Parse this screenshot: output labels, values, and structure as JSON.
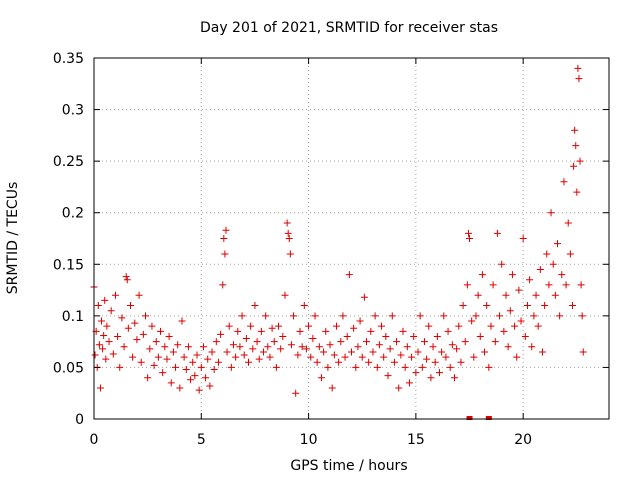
{
  "chart_data": {
    "type": "scatter",
    "title": "Day 201 of 2021, SRMTID for receiver stas",
    "xlabel": "GPS time / hours",
    "ylabel": "SRMTID / TECUs",
    "xlim": [
      0,
      24
    ],
    "ylim": [
      0,
      0.35
    ],
    "x_ticks": [
      0,
      5,
      10,
      15,
      20
    ],
    "x_tick_labels": [
      "0",
      "5",
      "10",
      "15",
      "20"
    ],
    "y_ticks": [
      0,
      0.05,
      0.1,
      0.15,
      0.2,
      0.25,
      0.3,
      0.35
    ],
    "y_tick_labels": [
      "0",
      "0.05",
      "0.1",
      "0.15",
      "0.2",
      "0.25",
      "0.3",
      "0.35"
    ],
    "grid": true,
    "marker": "+",
    "color": "#dd0000",
    "series": [
      {
        "name": "SRMTID",
        "points": [
          [
            0.0,
            0.128
          ],
          [
            0.05,
            0.062
          ],
          [
            0.1,
            0.085
          ],
          [
            0.15,
            0.05
          ],
          [
            0.2,
            0.11
          ],
          [
            0.25,
            0.072
          ],
          [
            0.3,
            0.03
          ],
          [
            0.35,
            0.095
          ],
          [
            0.4,
            0.068
          ],
          [
            0.45,
            0.081
          ],
          [
            0.5,
            0.115
          ],
          [
            0.55,
            0.058
          ],
          [
            0.6,
            0.09
          ],
          [
            0.7,
            0.075
          ],
          [
            0.8,
            0.105
          ],
          [
            0.9,
            0.063
          ],
          [
            1.0,
            0.12
          ],
          [
            1.1,
            0.08
          ],
          [
            1.2,
            0.05
          ],
          [
            1.3,
            0.098
          ],
          [
            1.4,
            0.07
          ],
          [
            1.5,
            0.138
          ],
          [
            1.55,
            0.135
          ],
          [
            1.6,
            0.088
          ],
          [
            1.7,
            0.11
          ],
          [
            1.8,
            0.06
          ],
          [
            1.9,
            0.093
          ],
          [
            2.0,
            0.077
          ],
          [
            2.1,
            0.12
          ],
          [
            2.2,
            0.055
          ],
          [
            2.3,
            0.082
          ],
          [
            2.4,
            0.1
          ],
          [
            2.5,
            0.04
          ],
          [
            2.6,
            0.068
          ],
          [
            2.7,
            0.09
          ],
          [
            2.8,
            0.052
          ],
          [
            2.9,
            0.075
          ],
          [
            3.0,
            0.06
          ],
          [
            3.1,
            0.085
          ],
          [
            3.2,
            0.045
          ],
          [
            3.3,
            0.07
          ],
          [
            3.4,
            0.058
          ],
          [
            3.5,
            0.08
          ],
          [
            3.6,
            0.035
          ],
          [
            3.7,
            0.065
          ],
          [
            3.8,
            0.05
          ],
          [
            3.9,
            0.072
          ],
          [
            4.0,
            0.03
          ],
          [
            4.1,
            0.095
          ],
          [
            4.2,
            0.06
          ],
          [
            4.3,
            0.048
          ],
          [
            4.4,
            0.07
          ],
          [
            4.5,
            0.038
          ],
          [
            4.6,
            0.055
          ],
          [
            4.7,
            0.042
          ],
          [
            4.8,
            0.062
          ],
          [
            4.9,
            0.028
          ],
          [
            5.0,
            0.05
          ],
          [
            5.1,
            0.07
          ],
          [
            5.2,
            0.04
          ],
          [
            5.3,
            0.058
          ],
          [
            5.4,
            0.032
          ],
          [
            5.5,
            0.065
          ],
          [
            5.6,
            0.048
          ],
          [
            5.7,
            0.075
          ],
          [
            5.8,
            0.055
          ],
          [
            5.9,
            0.082
          ],
          [
            6.0,
            0.13
          ],
          [
            6.05,
            0.175
          ],
          [
            6.1,
            0.16
          ],
          [
            6.15,
            0.183
          ],
          [
            6.2,
            0.065
          ],
          [
            6.3,
            0.09
          ],
          [
            6.4,
            0.05
          ],
          [
            6.5,
            0.072
          ],
          [
            6.6,
            0.06
          ],
          [
            6.7,
            0.085
          ],
          [
            6.8,
            0.07
          ],
          [
            6.9,
            0.1
          ],
          [
            7.0,
            0.062
          ],
          [
            7.1,
            0.078
          ],
          [
            7.2,
            0.055
          ],
          [
            7.3,
            0.09
          ],
          [
            7.4,
            0.068
          ],
          [
            7.5,
            0.11
          ],
          [
            7.6,
            0.075
          ],
          [
            7.7,
            0.058
          ],
          [
            7.8,
            0.085
          ],
          [
            7.9,
            0.065
          ],
          [
            8.0,
            0.1
          ],
          [
            8.1,
            0.07
          ],
          [
            8.2,
            0.06
          ],
          [
            8.3,
            0.088
          ],
          [
            8.4,
            0.075
          ],
          [
            8.5,
            0.05
          ],
          [
            8.6,
            0.09
          ],
          [
            8.7,
            0.068
          ],
          [
            8.8,
            0.08
          ],
          [
            8.9,
            0.12
          ],
          [
            9.0,
            0.19
          ],
          [
            9.05,
            0.18
          ],
          [
            9.1,
            0.175
          ],
          [
            9.15,
            0.16
          ],
          [
            9.2,
            0.072
          ],
          [
            9.3,
            0.1
          ],
          [
            9.4,
            0.025
          ],
          [
            9.5,
            0.062
          ],
          [
            9.6,
            0.085
          ],
          [
            9.7,
            0.07
          ],
          [
            9.8,
            0.11
          ],
          [
            9.9,
            0.068
          ],
          [
            10.0,
            0.09
          ],
          [
            10.1,
            0.06
          ],
          [
            10.2,
            0.078
          ],
          [
            10.3,
            0.1
          ],
          [
            10.4,
            0.055
          ],
          [
            10.5,
            0.07
          ],
          [
            10.6,
            0.04
          ],
          [
            10.7,
            0.065
          ],
          [
            10.8,
            0.085
          ],
          [
            10.9,
            0.05
          ],
          [
            11.0,
            0.072
          ],
          [
            11.1,
            0.03
          ],
          [
            11.2,
            0.062
          ],
          [
            11.3,
            0.09
          ],
          [
            11.4,
            0.055
          ],
          [
            11.5,
            0.075
          ],
          [
            11.6,
            0.1
          ],
          [
            11.7,
            0.06
          ],
          [
            11.8,
            0.08
          ],
          [
            11.9,
            0.14
          ],
          [
            12.0,
            0.065
          ],
          [
            12.1,
            0.088
          ],
          [
            12.2,
            0.05
          ],
          [
            12.3,
            0.07
          ],
          [
            12.4,
            0.095
          ],
          [
            12.5,
            0.06
          ],
          [
            12.6,
            0.118
          ],
          [
            12.7,
            0.075
          ],
          [
            12.8,
            0.055
          ],
          [
            12.9,
            0.085
          ],
          [
            13.0,
            0.065
          ],
          [
            13.1,
            0.1
          ],
          [
            13.2,
            0.05
          ],
          [
            13.3,
            0.072
          ],
          [
            13.4,
            0.09
          ],
          [
            13.5,
            0.06
          ],
          [
            13.6,
            0.08
          ],
          [
            13.7,
            0.042
          ],
          [
            13.8,
            0.068
          ],
          [
            13.9,
            0.1
          ],
          [
            14.0,
            0.055
          ],
          [
            14.1,
            0.075
          ],
          [
            14.2,
            0.03
          ],
          [
            14.3,
            0.062
          ],
          [
            14.4,
            0.085
          ],
          [
            14.5,
            0.05
          ],
          [
            14.6,
            0.07
          ],
          [
            14.7,
            0.035
          ],
          [
            14.8,
            0.06
          ],
          [
            14.9,
            0.08
          ],
          [
            15.0,
            0.045
          ],
          [
            15.1,
            0.065
          ],
          [
            15.2,
            0.1
          ],
          [
            15.3,
            0.05
          ],
          [
            15.4,
            0.075
          ],
          [
            15.5,
            0.058
          ],
          [
            15.6,
            0.09
          ],
          [
            15.7,
            0.04
          ],
          [
            15.8,
            0.07
          ],
          [
            15.9,
            0.055
          ],
          [
            16.0,
            0.08
          ],
          [
            16.1,
            0.045
          ],
          [
            16.2,
            0.065
          ],
          [
            16.3,
            0.1
          ],
          [
            16.4,
            0.06
          ],
          [
            16.5,
            0.085
          ],
          [
            16.6,
            0.05
          ],
          [
            16.7,
            0.072
          ],
          [
            16.8,
            0.04
          ],
          [
            16.9,
            0.068
          ],
          [
            17.0,
            0.09
          ],
          [
            17.1,
            0.055
          ],
          [
            17.2,
            0.11
          ],
          [
            17.3,
            0.075
          ],
          [
            17.4,
            0.13
          ],
          [
            17.45,
            0.18
          ],
          [
            17.5,
            0.175
          ],
          [
            17.6,
            0.095
          ],
          [
            17.7,
            0.06
          ],
          [
            17.8,
            0.1
          ],
          [
            17.9,
            0.12
          ],
          [
            18.0,
            0.08
          ],
          [
            18.1,
            0.14
          ],
          [
            18.2,
            0.065
          ],
          [
            18.3,
            0.11
          ],
          [
            18.4,
            0.05
          ],
          [
            18.5,
            0.09
          ],
          [
            18.6,
            0.13
          ],
          [
            18.7,
            0.075
          ],
          [
            18.8,
            0.18
          ],
          [
            18.9,
            0.1
          ],
          [
            19.0,
            0.15
          ],
          [
            19.1,
            0.085
          ],
          [
            19.2,
            0.12
          ],
          [
            19.3,
            0.07
          ],
          [
            19.4,
            0.105
          ],
          [
            19.5,
            0.14
          ],
          [
            19.6,
            0.09
          ],
          [
            19.7,
            0.06
          ],
          [
            19.8,
            0.125
          ],
          [
            19.9,
            0.095
          ],
          [
            20.0,
            0.175
          ],
          [
            20.1,
            0.08
          ],
          [
            20.2,
            0.11
          ],
          [
            20.3,
            0.135
          ],
          [
            20.4,
            0.07
          ],
          [
            20.5,
            0.1
          ],
          [
            20.6,
            0.12
          ],
          [
            20.7,
            0.09
          ],
          [
            20.8,
            0.145
          ],
          [
            20.9,
            0.065
          ],
          [
            21.0,
            0.11
          ],
          [
            21.1,
            0.16
          ],
          [
            21.2,
            0.13
          ],
          [
            21.3,
            0.2
          ],
          [
            21.4,
            0.15
          ],
          [
            21.5,
            0.12
          ],
          [
            21.6,
            0.17
          ],
          [
            21.7,
            0.1
          ],
          [
            21.8,
            0.14
          ],
          [
            21.9,
            0.23
          ],
          [
            22.0,
            0.13
          ],
          [
            22.1,
            0.19
          ],
          [
            22.2,
            0.16
          ],
          [
            22.3,
            0.11
          ],
          [
            22.35,
            0.245
          ],
          [
            22.4,
            0.28
          ],
          [
            22.45,
            0.265
          ],
          [
            22.5,
            0.22
          ],
          [
            22.55,
            0.34
          ],
          [
            22.6,
            0.33
          ],
          [
            22.65,
            0.25
          ],
          [
            22.7,
            0.13
          ],
          [
            22.75,
            0.1
          ],
          [
            22.8,
            0.065
          ]
        ]
      }
    ],
    "zero_markers": [
      17.5,
      18.4
    ]
  }
}
